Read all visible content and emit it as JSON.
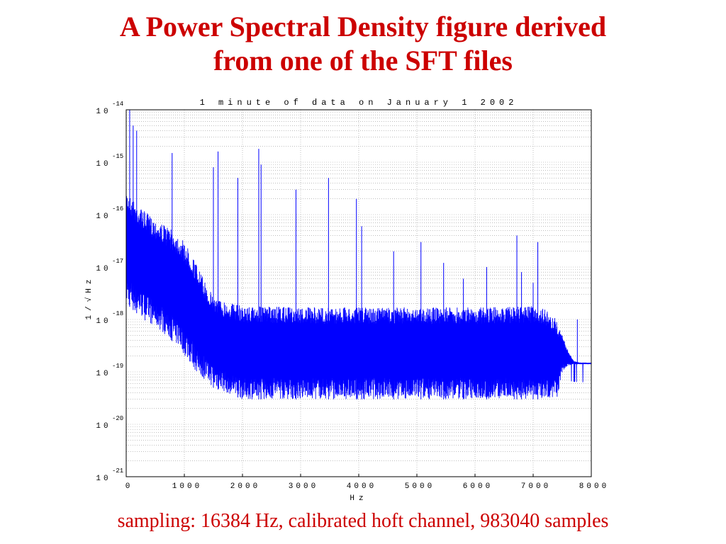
{
  "slide": {
    "title_line1": "A Power Spectral Density figure derived",
    "title_line2": "from one of the SFT files",
    "caption": "sampling: 16384 Hz, calibrated hoft channel, 983040 samples"
  },
  "chart_data": {
    "type": "line",
    "title": "1 minute of data on January 1 2002",
    "xlabel": "Hz",
    "ylabel": "1/√Hz",
    "xlim": [
      0,
      8000
    ],
    "ylim": [
      1e-21,
      1e-14
    ],
    "yscale": "log",
    "grid": true,
    "x_ticks": [
      0,
      1000,
      2000,
      3000,
      4000,
      5000,
      6000,
      7000,
      8000
    ],
    "x_tick_labels": [
      "0",
      "1000",
      "2000",
      "3000",
      "4000",
      "5000",
      "6000",
      "7000",
      "8000"
    ],
    "y_tick_exponents": [
      -14,
      -15,
      -16,
      -17,
      -18,
      -19,
      -20,
      -21
    ],
    "y_tick_base": "10",
    "line_color": "#0000ff",
    "series": [
      {
        "band_upper": {
          "x": [
            0,
            100,
            300,
            500,
            700,
            900,
            1000,
            1100,
            1200,
            1300,
            1400,
            1500,
            1600,
            1800,
            2000,
            3000,
            4000,
            5000,
            6000,
            7000,
            7200,
            7400,
            7500,
            7600,
            7700,
            7800,
            8000
          ],
          "y": [
            3e-16,
            2e-16,
            1.2e-16,
            8e-17,
            6e-17,
            4e-17,
            3e-17,
            2e-17,
            1.2e-17,
            7e-18,
            4e-18,
            3e-18,
            2.4e-18,
            2.1e-18,
            1.8e-18,
            1.7e-18,
            1.7e-18,
            1.7e-18,
            1.7e-18,
            1.8e-18,
            1.6e-18,
            1e-18,
            5e-19,
            2.5e-19,
            1.6e-19,
            1.5e-19,
            1.5e-19
          ]
        },
        "band_lower": {
          "x": [
            0,
            300,
            600,
            900,
            1200,
            1500,
            2000,
            3000,
            4000,
            5000,
            6000,
            7000,
            7400,
            7450,
            7500,
            7600,
            7700,
            7800,
            8000
          ],
          "y": [
            2e-18,
            1e-18,
            6e-19,
            3e-19,
            1e-19,
            5e-20,
            3e-20,
            3e-20,
            3e-20,
            3e-20,
            3e-20,
            3e-20,
            3e-20,
            5e-20,
            1e-19,
            1.3e-19,
            1.4e-19,
            1.4e-19,
            1.4e-19
          ]
        },
        "spikes": [
          {
            "x": 60,
            "y": 1.4e-14
          },
          {
            "x": 120,
            "y": 5e-15
          },
          {
            "x": 180,
            "y": 4e-15
          },
          {
            "x": 790,
            "y": 1.5e-15
          },
          {
            "x": 1500,
            "y": 8e-16
          },
          {
            "x": 1580,
            "y": 1.6e-15
          },
          {
            "x": 1920,
            "y": 5e-16
          },
          {
            "x": 2280,
            "y": 1.8e-15
          },
          {
            "x": 2320,
            "y": 9e-16
          },
          {
            "x": 2920,
            "y": 3e-16
          },
          {
            "x": 3480,
            "y": 5e-16
          },
          {
            "x": 3960,
            "y": 2e-16
          },
          {
            "x": 4050,
            "y": 6e-17
          },
          {
            "x": 4600,
            "y": 2e-17
          },
          {
            "x": 5070,
            "y": 3e-17
          },
          {
            "x": 5460,
            "y": 1.2e-17
          },
          {
            "x": 5800,
            "y": 6e-18
          },
          {
            "x": 6200,
            "y": 1e-17
          },
          {
            "x": 6720,
            "y": 4e-17
          },
          {
            "x": 6800,
            "y": 8e-18
          },
          {
            "x": 7000,
            "y": 5e-18
          },
          {
            "x": 7080,
            "y": 3e-17
          },
          {
            "x": 7760,
            "y": 1e-18
          }
        ]
      }
    ]
  }
}
